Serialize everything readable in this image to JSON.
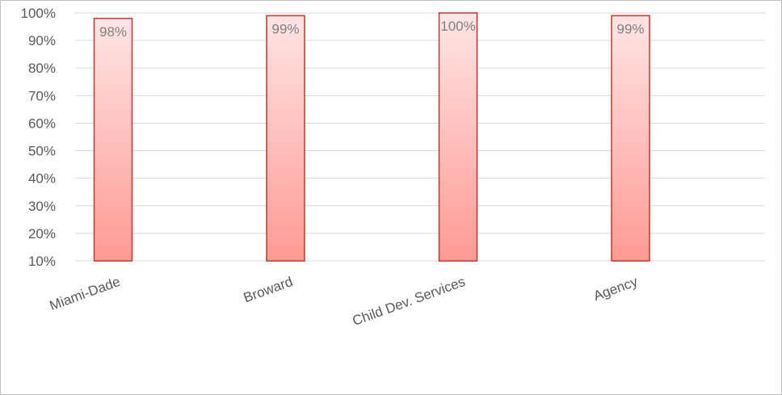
{
  "chart_data": {
    "type": "bar",
    "categories": [
      "Miami-Dade",
      "Broward",
      "Child Dev. Services",
      "Agency"
    ],
    "values": [
      98,
      99,
      100,
      99
    ],
    "data_labels": [
      "98%",
      "99%",
      "100%",
      "99%"
    ],
    "ylim": [
      10,
      100
    ],
    "yticks": [
      10,
      20,
      30,
      40,
      50,
      60,
      70,
      80,
      90,
      100
    ],
    "ytick_labels": [
      "10%",
      "20%",
      "30%",
      "40%",
      "50%",
      "60%",
      "70%",
      "80%",
      "90%",
      "100%"
    ],
    "unit": "%",
    "grid": true,
    "bar_fill_top": "#ffe5e5",
    "bar_fill_bottom": "#ff9a94",
    "bar_stroke": "#c0392b",
    "gridline_color": "#d9d9d9"
  }
}
